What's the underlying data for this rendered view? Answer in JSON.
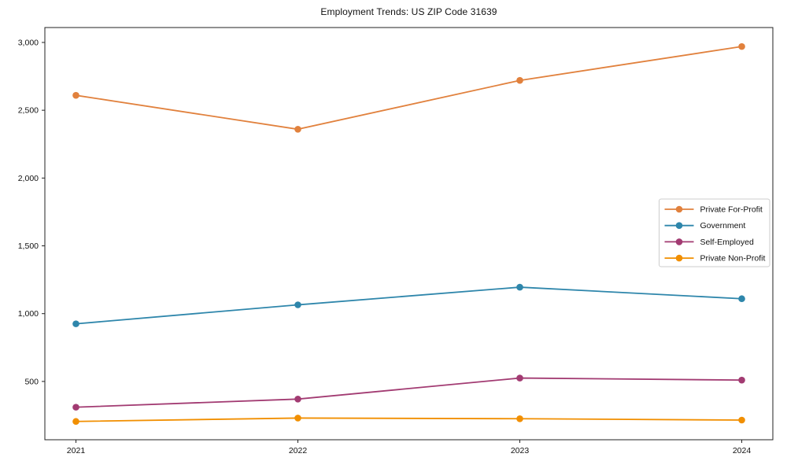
{
  "page": {
    "background": "#ffffff",
    "border_color": "#222222",
    "legend_border_color": "#cccccc",
    "text_color": "#111111"
  },
  "chart_data": {
    "type": "line",
    "title": "Employment Trends: US ZIP Code 31639",
    "categories": [
      2021,
      2022,
      2023,
      2024
    ],
    "xtick_labels": [
      "2021",
      "2022",
      "2023",
      "2024"
    ],
    "series": [
      {
        "name": "Private For-Profit",
        "color": "#e1813d",
        "values": [
          2610,
          2360,
          2720,
          2970
        ]
      },
      {
        "name": "Government",
        "color": "#2e86ab",
        "values": [
          925,
          1065,
          1195,
          1110
        ]
      },
      {
        "name": "Self-Employed",
        "color": "#a23b72",
        "values": [
          310,
          370,
          525,
          510
        ]
      },
      {
        "name": "Private Non-Profit",
        "color": "#f18f01",
        "values": [
          205,
          230,
          225,
          215
        ]
      }
    ],
    "xlabel": "",
    "ylabel": "",
    "xlim": [
      2020.86,
      2024.14
    ],
    "ylim": [
      70,
      3110
    ],
    "yticks": [
      500,
      1000,
      1500,
      2000,
      2500,
      3000
    ],
    "ytick_labels": [
      "500",
      "1,000",
      "1,500",
      "2,000",
      "2,500",
      "3,000"
    ],
    "grid": false,
    "legend_position": "center-right",
    "marker": "circle"
  }
}
